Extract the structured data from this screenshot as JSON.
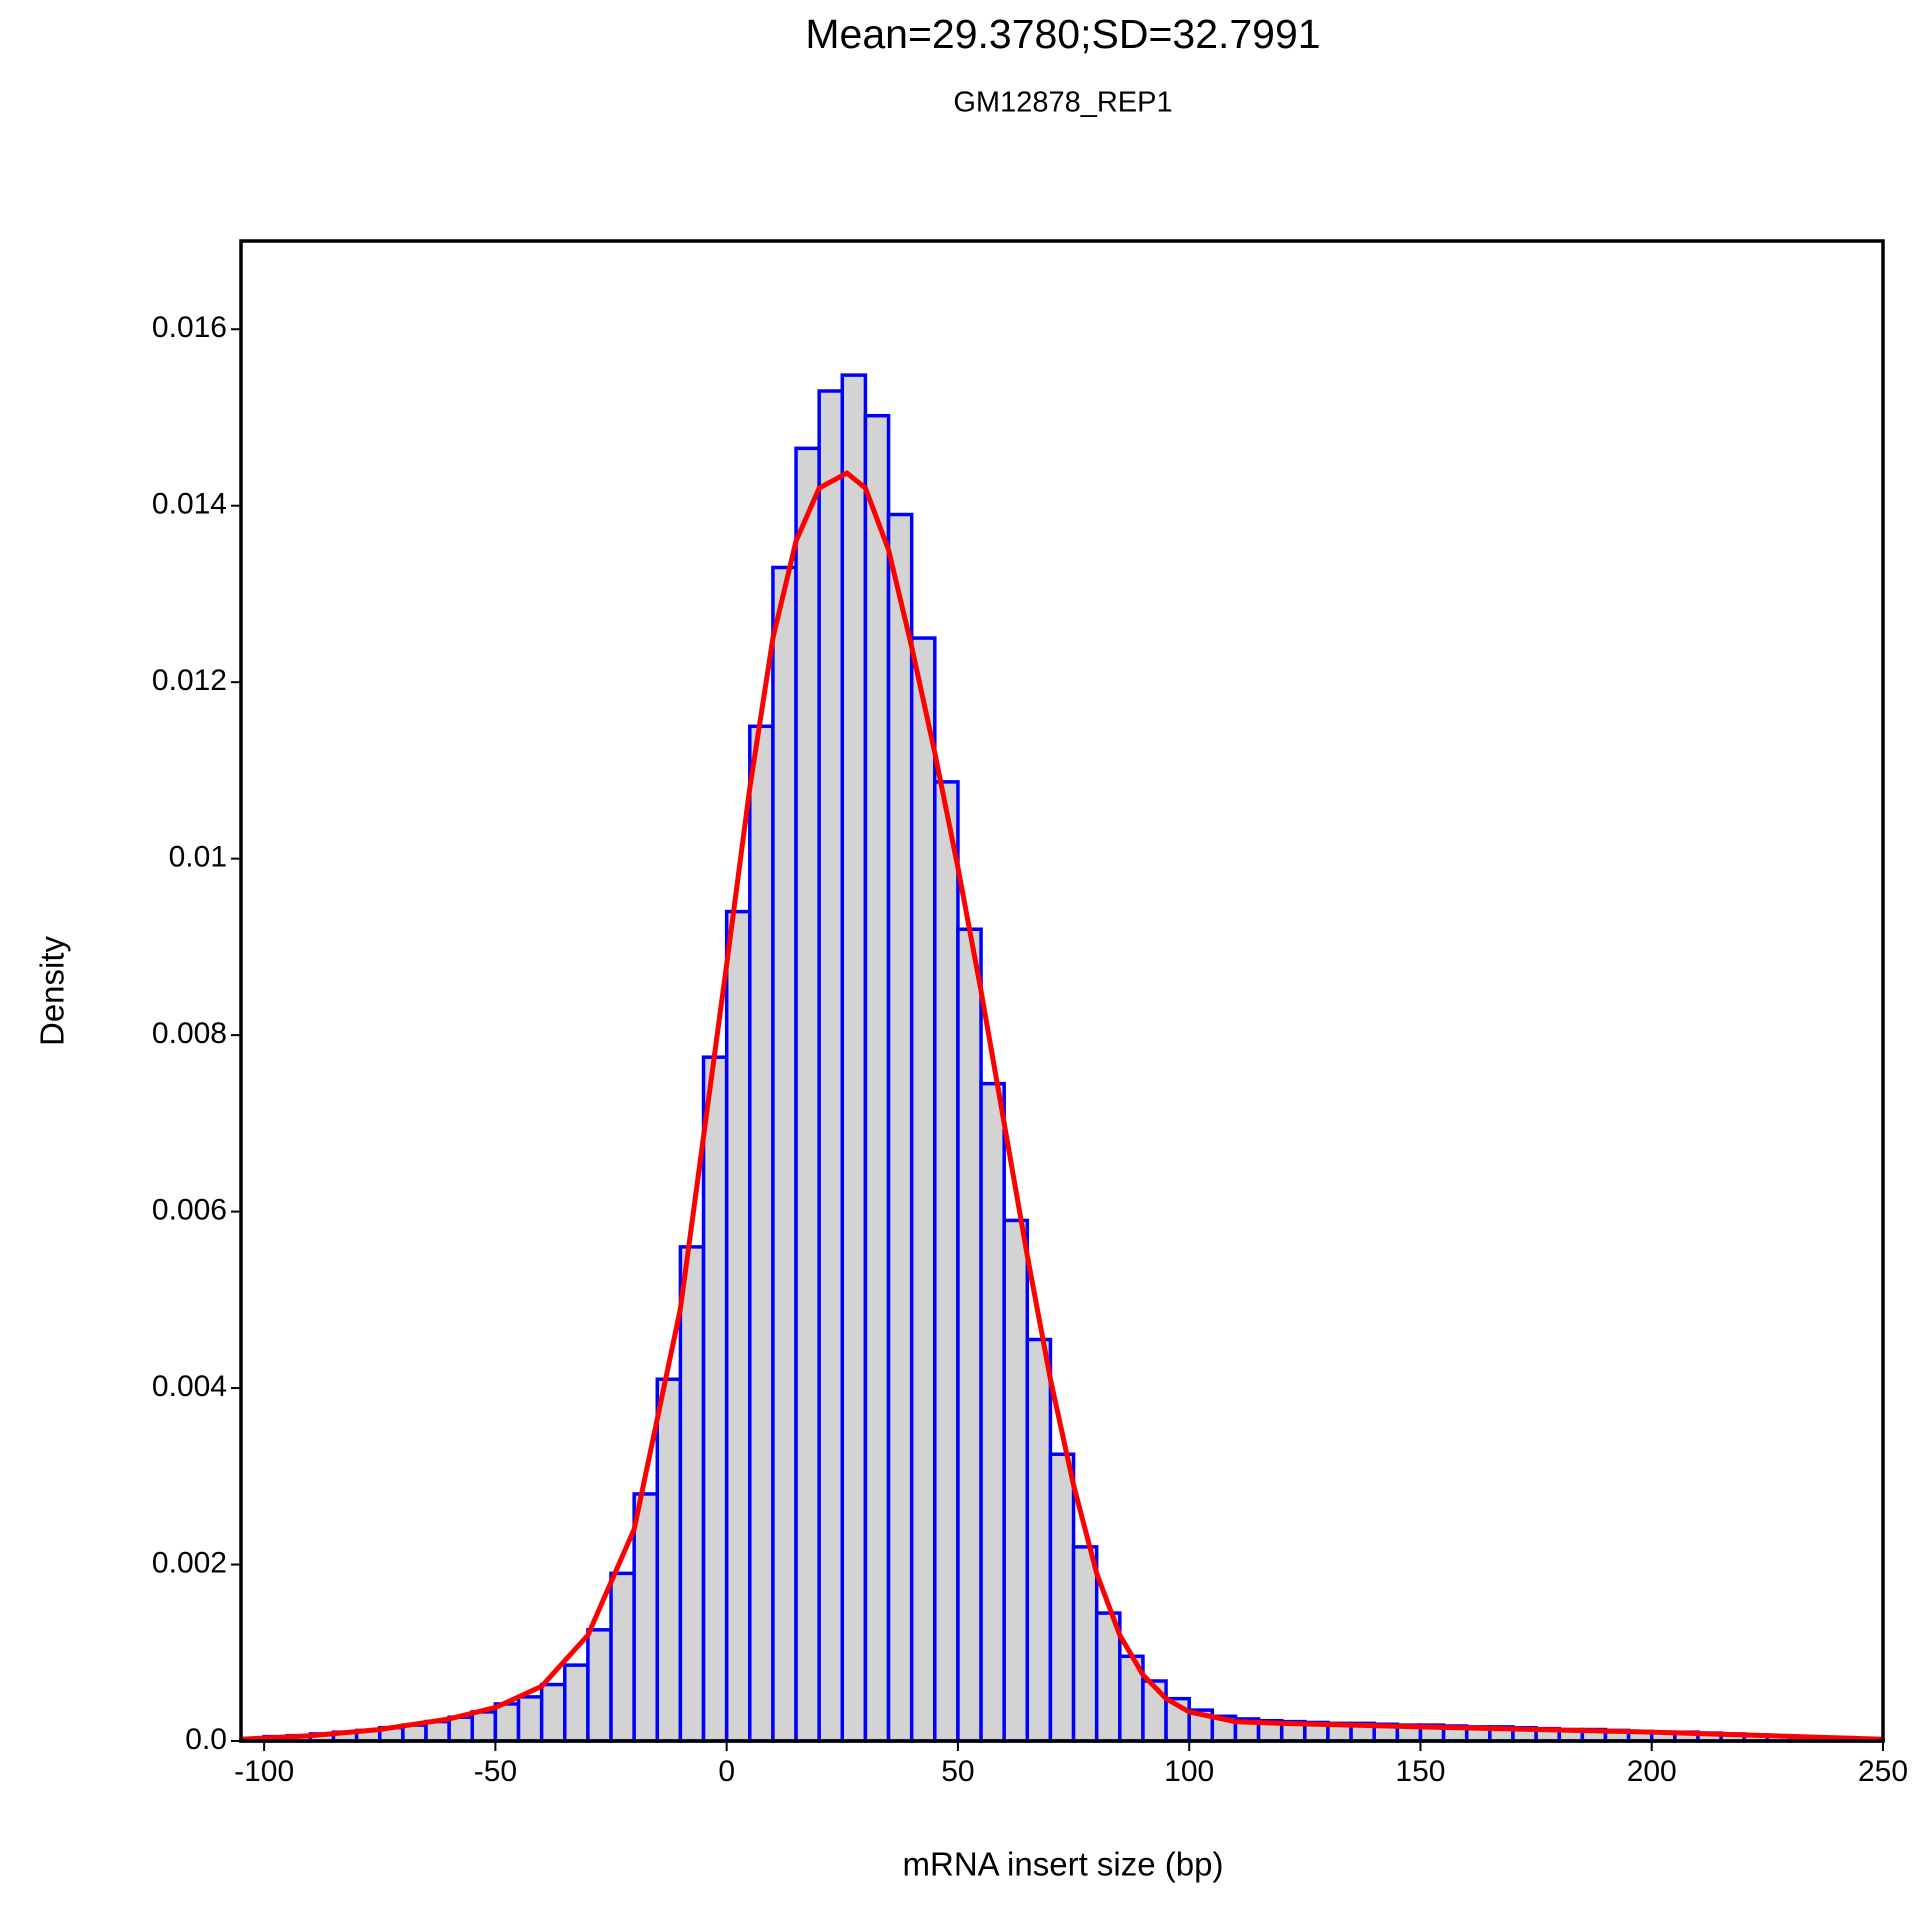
{
  "chart_data": {
    "type": "histogram",
    "title": "Mean=29.3780;SD=32.7991",
    "subtitle": "GM12878_REP1",
    "x_label": "mRNA insert size (bp)",
    "y_label": "Density",
    "bins": [
      -105,
      -100,
      -95,
      -90,
      -85,
      -80,
      -75,
      -70,
      -65,
      -60,
      -55,
      -50,
      -45,
      -40,
      -35,
      -30,
      -25,
      -20,
      -15,
      -10,
      -5,
      0,
      5,
      10,
      15,
      20,
      25,
      30,
      35,
      40,
      45,
      50,
      55,
      60,
      65,
      70,
      75,
      80,
      85,
      90,
      95,
      100,
      105,
      110,
      115,
      120,
      125,
      130,
      135,
      140,
      145,
      150,
      155,
      160,
      165,
      170,
      175,
      180,
      185,
      190,
      195,
      200,
      205,
      210,
      215,
      220,
      225,
      230,
      235,
      240,
      245,
      250
    ],
    "values": [
      2e-05,
      5e-05,
      6e-05,
      8e-05,
      0.0001,
      0.00012,
      0.00015,
      0.00018,
      0.00022,
      0.00027,
      0.00033,
      0.00042,
      0.0005,
      0.00064,
      0.00086,
      0.00126,
      0.0019,
      0.0028,
      0.0041,
      0.0056,
      0.00775,
      0.0094,
      0.0115,
      0.0133,
      0.01465,
      0.0153,
      0.01548,
      0.01502,
      0.0139,
      0.0125,
      0.01087,
      0.0092,
      0.00745,
      0.0059,
      0.00455,
      0.00325,
      0.0022,
      0.00145,
      0.00096,
      0.00068,
      0.00048,
      0.00035,
      0.00028,
      0.00025,
      0.00023,
      0.00022,
      0.00021,
      0.0002,
      0.0002,
      0.00019,
      0.00018,
      0.00018,
      0.00017,
      0.00016,
      0.00016,
      0.00015,
      0.00014,
      0.00013,
      0.00013,
      0.00012,
      0.00011,
      0.0001,
      0.0001,
      9e-05,
      8e-05,
      7e-05,
      6e-05,
      5e-05,
      4e-05,
      3e-05,
      2e-05
    ],
    "fill_color": "#d3d3d3",
    "edge_color": "#0000ff",
    "density_curve": {
      "color": "#ff0000",
      "x": [
        -105,
        -90,
        -75,
        -60,
        -50,
        -40,
        -30,
        -20,
        -10,
        0,
        5,
        10,
        15,
        20,
        26,
        30,
        35,
        40,
        45,
        50,
        55,
        60,
        65,
        70,
        75,
        80,
        85,
        90,
        95,
        100,
        110,
        120,
        150,
        200,
        250
      ],
      "y": [
        2e-05,
        6e-05,
        0.00013,
        0.00025,
        0.00038,
        0.00062,
        0.0012,
        0.0024,
        0.0049,
        0.0088,
        0.0108,
        0.0125,
        0.0136,
        0.0142,
        0.01437,
        0.0142,
        0.0135,
        0.0124,
        0.0112,
        0.0099,
        0.0085,
        0.007,
        0.0055,
        0.0041,
        0.0029,
        0.0019,
        0.0012,
        0.00075,
        0.00048,
        0.00033,
        0.00022,
        0.0002,
        0.00016,
        0.0001,
        2e-05
      ]
    },
    "xlim": [
      -105,
      250
    ],
    "ylim": [
      0,
      0.017
    ],
    "xticks": [
      -100,
      -50,
      0,
      50,
      100,
      150,
      200,
      250
    ],
    "yticks": [
      {
        "value": 0,
        "label": "0.0"
      },
      0.002,
      0.004,
      0.006,
      0.008,
      0.01,
      0.012,
      0.014,
      0.016
    ]
  }
}
